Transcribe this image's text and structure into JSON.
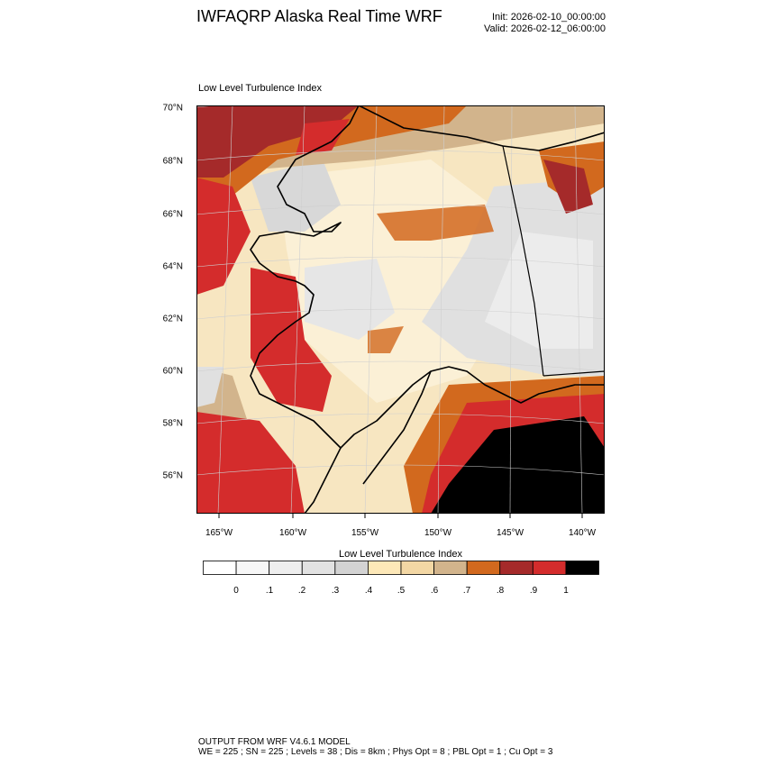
{
  "header": {
    "title": "IWFAQRP Alaska Real Time WRF",
    "init": "Init: 2026-02-10_00:00:00",
    "valid": "Valid: 2026-02-12_06:00:00"
  },
  "panel": {
    "title": "Low Level Turbulence Index",
    "lat_labels": [
      "70°N",
      "68°N",
      "66°N",
      "64°N",
      "62°N",
      "60°N",
      "58°N",
      "56°N"
    ],
    "lon_labels": [
      "165°W",
      "160°W",
      "155°W",
      "150°W",
      "145°W",
      "140°W"
    ]
  },
  "colorbar": {
    "title": "Low Level Turbulence Index",
    "levels": [
      "0",
      ".1",
      ".2",
      ".3",
      ".4",
      ".5",
      ".6",
      ".7",
      ".8",
      ".9",
      "1"
    ],
    "colors": [
      "#ffffff",
      "#f7f7f7",
      "#eeeeee",
      "#e2e2e2",
      "#d3d3d3",
      "#fde8b8",
      "#f3d7a4",
      "#d2b48c",
      "#d2691e",
      "#a52a2a",
      "#d42c2c",
      "#000000"
    ]
  },
  "footer": {
    "line1": "OUTPUT FROM WRF V4.6.1 MODEL",
    "line2": "WE = 225 ; SN = 225 ; Levels = 38 ; Dis = 8km ; Phys Opt = 8 ; PBL Opt = 1 ; Cu Opt = 3"
  }
}
